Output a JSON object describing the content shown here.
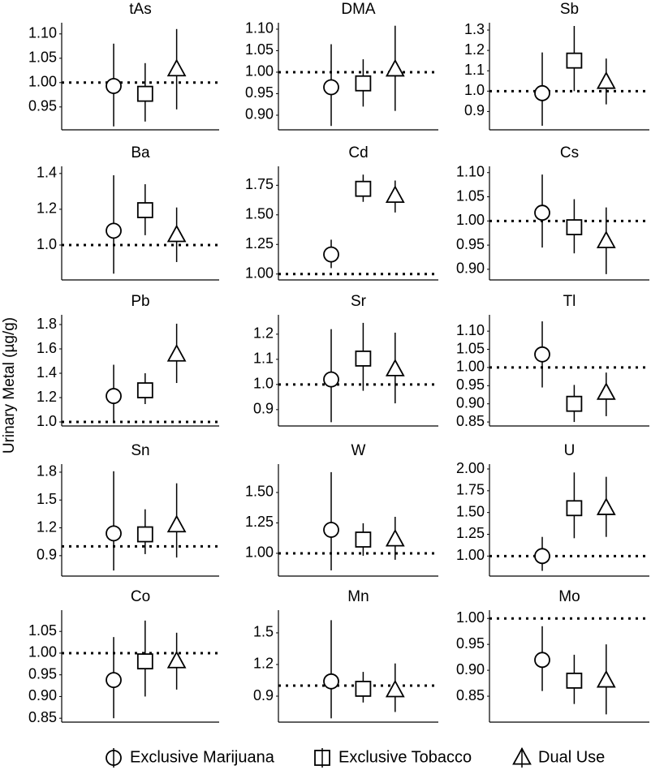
{
  "y_label": "Urinary Metal (µg/g)",
  "legend": {
    "position": "bottom",
    "entries": [
      {
        "name": "Exclusive Marijuana",
        "marker": "circle"
      },
      {
        "name": "Exclusive Tobacco",
        "marker": "square"
      },
      {
        "name": "Dual Use",
        "marker": "triangle"
      }
    ]
  },
  "chart_data": [
    {
      "type": "errorbar",
      "title": "tAs",
      "ylim": [
        0.903,
        1.123
      ],
      "yticks": [
        0.95,
        {
          "value": 1,
          "label": "1.00"
        },
        1.05,
        {
          "value": 1.1,
          "label": "1.10"
        }
      ],
      "reference": 1,
      "values": [
        0.993,
        0.977,
        1.027
      ],
      "lower": [
        0.91,
        0.92,
        0.945
      ],
      "upper": [
        1.08,
        1.04,
        1.11
      ]
    },
    {
      "type": "errorbar",
      "title": "DMA",
      "ylim": [
        0.866,
        1.115
      ],
      "yticks": [
        {
          "value": 0.9,
          "label": "0.90"
        },
        0.95,
        {
          "value": 1,
          "label": "1.00"
        },
        1.05,
        {
          "value": 1.1,
          "label": "1.10"
        }
      ],
      "reference": 1,
      "values": [
        0.965,
        0.974,
        1.006
      ],
      "lower": [
        0.875,
        0.92,
        0.91
      ],
      "upper": [
        1.065,
        1.03,
        1.108
      ]
    },
    {
      "type": "errorbar",
      "title": "Sb",
      "ylim": [
        0.81,
        1.336
      ],
      "yticks": [
        0.9,
        {
          "value": 1,
          "label": "1.0"
        },
        1.1,
        1.2,
        1.3
      ],
      "reference": 1,
      "values": [
        0.99,
        1.15,
        1.045
      ],
      "lower": [
        0.83,
        1.0,
        0.935
      ],
      "upper": [
        1.19,
        1.32,
        1.16
      ]
    },
    {
      "type": "errorbar",
      "title": "Ba",
      "ylim": [
        0.805,
        1.44
      ],
      "yticks": [
        {
          "value": 1,
          "label": "1.0"
        },
        1.2,
        1.4
      ],
      "reference": 1,
      "values": [
        1.08,
        1.195,
        1.055
      ],
      "lower": [
        0.84,
        1.055,
        0.905
      ],
      "upper": [
        1.39,
        1.34,
        1.21
      ]
    },
    {
      "type": "errorbar",
      "title": "Cd",
      "ylim": [
        0.95,
        1.91
      ],
      "yticks": [
        {
          "value": 1,
          "label": "1.00"
        },
        1.25,
        {
          "value": 1.5,
          "label": "1.50"
        },
        1.75
      ],
      "reference": 1,
      "values": [
        1.165,
        1.72,
        1.66
      ],
      "lower": [
        1.05,
        1.61,
        1.52
      ],
      "upper": [
        1.29,
        1.84,
        1.79
      ]
    },
    {
      "type": "errorbar",
      "title": "Cs",
      "ylim": [
        0.878,
        1.113
      ],
      "yticks": [
        {
          "value": 0.9,
          "label": "0.90"
        },
        0.95,
        {
          "value": 1,
          "label": "1.00"
        },
        1.05,
        {
          "value": 1.1,
          "label": "1.10"
        }
      ],
      "reference": 1,
      "values": [
        1.017,
        0.987,
        0.958
      ],
      "lower": [
        0.945,
        0.933,
        0.89
      ],
      "upper": [
        1.096,
        1.045,
        1.028
      ]
    },
    {
      "type": "errorbar",
      "title": "Pb",
      "ylim": [
        0.967,
        1.88
      ],
      "yticks": [
        {
          "value": 1,
          "label": "1.0"
        },
        1.2,
        1.4,
        1.6,
        1.8
      ],
      "reference": 1,
      "values": [
        1.213,
        1.26,
        1.553
      ],
      "lower": [
        1.0,
        1.147,
        1.32
      ],
      "upper": [
        1.47,
        1.4,
        1.807
      ]
    },
    {
      "type": "errorbar",
      "title": "Sr",
      "ylim": [
        0.835,
        1.277
      ],
      "yticks": [
        0.9,
        {
          "value": 1,
          "label": "1.0"
        },
        1.1,
        1.2
      ],
      "reference": 1,
      "values": [
        1.02,
        1.103,
        1.06
      ],
      "lower": [
        0.85,
        0.975,
        0.925
      ],
      "upper": [
        1.22,
        1.245,
        1.206
      ]
    },
    {
      "type": "errorbar",
      "title": "Tl",
      "ylim": [
        0.839,
        1.145
      ],
      "yticks": [
        0.85,
        {
          "value": 0.9,
          "label": "0.90"
        },
        0.95,
        {
          "value": 1,
          "label": "1.00"
        },
        1.05,
        {
          "value": 1.1,
          "label": "1.10"
        }
      ],
      "reference": 1,
      "values": [
        1.036,
        0.9,
        0.93
      ],
      "lower": [
        0.945,
        0.85,
        0.866
      ],
      "upper": [
        1.127,
        0.952,
        0.986
      ]
    },
    {
      "type": "errorbar",
      "title": "Sn",
      "ylim": [
        0.68,
        1.887
      ],
      "yticks": [
        0.9,
        1.2,
        1.5,
        1.8
      ],
      "reference": 1,
      "values": [
        1.14,
        1.13,
        1.226
      ],
      "lower": [
        0.74,
        0.917,
        0.88
      ],
      "upper": [
        1.81,
        1.4,
        1.68
      ]
    },
    {
      "type": "errorbar",
      "title": "W",
      "ylim": [
        0.813,
        1.733
      ],
      "yticks": [
        {
          "value": 1,
          "label": "1.00"
        },
        1.25,
        {
          "value": 1.5,
          "label": "1.50"
        }
      ],
      "reference": 1,
      "values": [
        1.193,
        1.113,
        1.113
      ],
      "lower": [
        0.86,
        0.98,
        0.947
      ],
      "upper": [
        1.667,
        1.247,
        1.3
      ]
    },
    {
      "type": "errorbar",
      "title": "U",
      "ylim": [
        0.77,
        2.056
      ],
      "yticks": [
        {
          "value": 1,
          "label": "1.00"
        },
        1.25,
        {
          "value": 1.5,
          "label": "1.50"
        },
        1.75,
        {
          "value": 2,
          "label": "2.00"
        }
      ],
      "reference": 1,
      "values": [
        1.0,
        1.55,
        1.55
      ],
      "lower": [
        0.83,
        1.205,
        1.22
      ],
      "upper": [
        1.22,
        1.96,
        1.91
      ]
    },
    {
      "type": "errorbar",
      "title": "Co",
      "ylim": [
        0.841,
        1.099
      ],
      "yticks": [
        0.85,
        {
          "value": 0.9,
          "label": "0.90"
        },
        0.95,
        {
          "value": 1,
          "label": "1.00"
        },
        1.05
      ],
      "reference": 1,
      "values": [
        0.938,
        0.981,
        0.981
      ],
      "lower": [
        0.85,
        0.9,
        0.916
      ],
      "upper": [
        1.037,
        1.075,
        1.047
      ]
    },
    {
      "type": "errorbar",
      "title": "Mn",
      "ylim": [
        0.654,
        1.715
      ],
      "yticks": [
        0.9,
        1.2,
        1.5
      ],
      "reference": 1,
      "values": [
        1.04,
        0.97,
        0.955
      ],
      "lower": [
        0.69,
        0.84,
        0.75
      ],
      "upper": [
        1.62,
        1.13,
        1.21
      ]
    },
    {
      "type": "errorbar",
      "title": "Mo",
      "ylim": [
        0.8,
        1.016
      ],
      "yticks": [
        0.85,
        {
          "value": 0.9,
          "label": "0.90"
        },
        0.95,
        {
          "value": 1,
          "label": "1.00"
        }
      ],
      "reference": 1,
      "values": [
        0.92,
        0.88,
        0.88
      ],
      "lower": [
        0.86,
        0.835,
        0.815
      ],
      "upper": [
        0.985,
        0.93,
        0.95
      ]
    }
  ]
}
